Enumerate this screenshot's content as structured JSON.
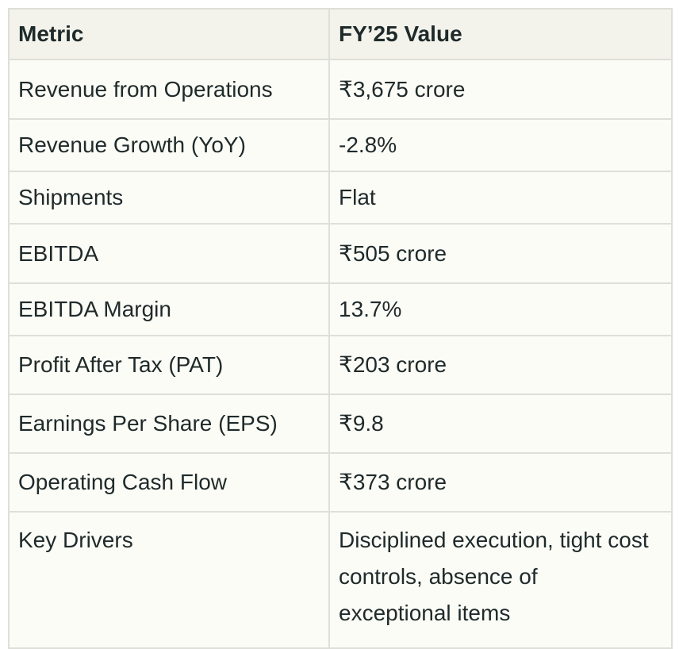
{
  "table": {
    "headers": [
      "Metric",
      "FY’25 Value"
    ],
    "rows": [
      {
        "metric": "Revenue from Operations",
        "value": "₹3,675 crore"
      },
      {
        "metric": "Revenue Growth (YoY)",
        "value": "-2.8%"
      },
      {
        "metric": "Shipments",
        "value": "Flat"
      },
      {
        "metric": "EBITDA",
        "value": "₹505 crore"
      },
      {
        "metric": "EBITDA Margin",
        "value": "13.7%"
      },
      {
        "metric": "Profit After Tax (PAT)",
        "value": "₹203 crore"
      },
      {
        "metric": "Earnings Per Share (EPS)",
        "value": "₹9.8"
      },
      {
        "metric": "Operating Cash Flow",
        "value": "₹373 crore"
      },
      {
        "metric": "Key Drivers",
        "value": "Disciplined execution, tight cost controls, absence of exceptional items"
      }
    ]
  },
  "colors": {
    "header_bg": "#f3f3ec",
    "cell_bg": "#fcfcf7",
    "border": "#dedfd8",
    "text": "#1f2a2a"
  }
}
